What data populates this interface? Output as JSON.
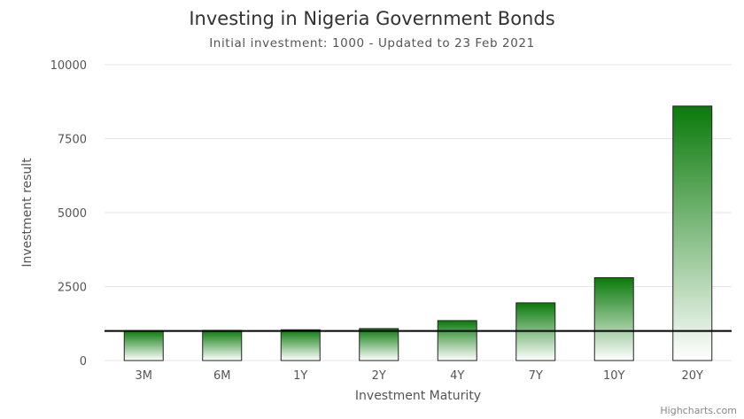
{
  "chart_data": {
    "type": "bar",
    "title": "Investing in Nigeria Government Bonds",
    "subtitle": "Initial investment: 1000 - Updated to 23 Feb 2021",
    "xlabel": "Investment Maturity",
    "ylabel": "Investment result",
    "categories": [
      "3M",
      "6M",
      "1Y",
      "2Y",
      "4Y",
      "7Y",
      "10Y",
      "20Y"
    ],
    "values": [
      1010,
      1020,
      1040,
      1080,
      1350,
      1950,
      2800,
      8600
    ],
    "ylim": [
      0,
      10000
    ],
    "yticks": [
      0,
      2500,
      5000,
      7500,
      10000
    ],
    "reference_line": 1000,
    "grid": true,
    "bar_color_top": "#0a7a0a",
    "bar_color_bottom": "#ffffff",
    "credits": "Highcharts.com"
  }
}
